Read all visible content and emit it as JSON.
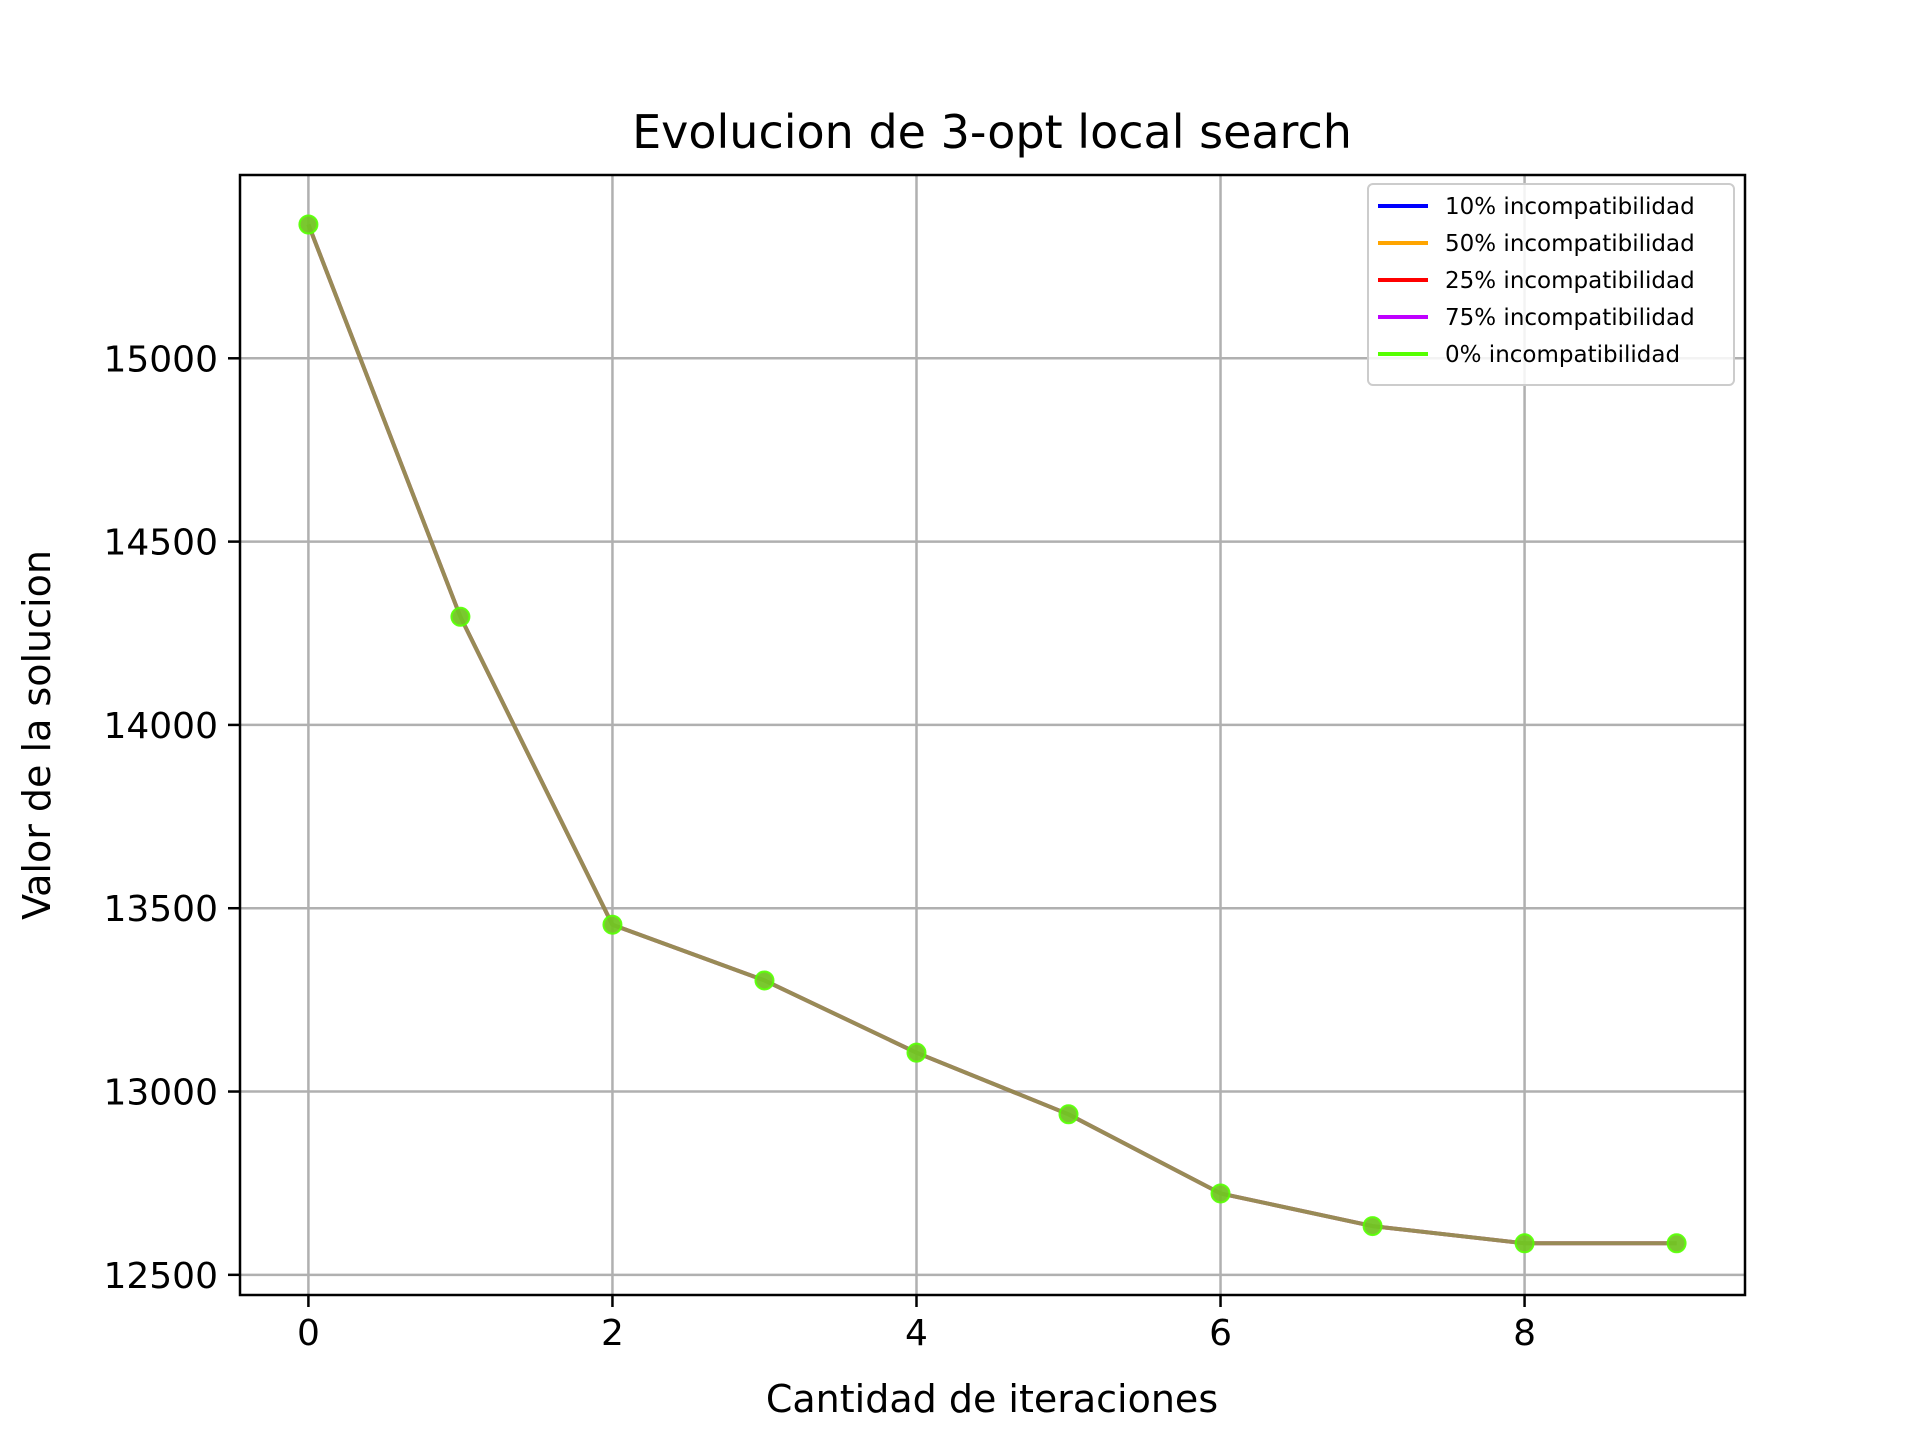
{
  "chart_data": {
    "type": "line",
    "title": "Evolucion de 3-opt local search",
    "xlabel": "Cantidad de iteraciones",
    "ylabel": "Valor de la solucion",
    "x": [
      0,
      1,
      2,
      3,
      4,
      5,
      6,
      7,
      8,
      9
    ],
    "xlim": [
      -0.45,
      9.45
    ],
    "ylim": [
      12445,
      15500
    ],
    "xticks": [
      0,
      2,
      4,
      6,
      8
    ],
    "yticks": [
      12500,
      13000,
      13500,
      14000,
      14500,
      15000
    ],
    "grid": true,
    "legend_position": "top-right",
    "series": [
      {
        "name": "10% incompatibilidad",
        "color": "#0000ff",
        "values": [
          15365,
          14295,
          13455,
          13303,
          13106,
          12938,
          12722,
          12633,
          12586,
          12586
        ]
      },
      {
        "name": "50% incompatibilidad",
        "color": "#ffa500",
        "values": [
          15365,
          14295,
          13455,
          13303,
          13106,
          12938,
          12722,
          12633,
          12586,
          12586
        ]
      },
      {
        "name": "25% incompatibilidad",
        "color": "#ff0000",
        "values": [
          15365,
          14295,
          13455,
          13303,
          13106,
          12938,
          12722,
          12633,
          12586,
          12586
        ]
      },
      {
        "name": "75% incompatibilidad",
        "color": "#bf00ff",
        "values": [
          15365,
          14295,
          13455,
          13303,
          13106,
          12938,
          12722,
          12633,
          12586,
          12586
        ]
      },
      {
        "name": "0% incompatibilidad",
        "color": "#55ff00",
        "values": [
          15365,
          14295,
          13455,
          13303,
          13106,
          12938,
          12722,
          12633,
          12586,
          12586
        ]
      }
    ]
  }
}
